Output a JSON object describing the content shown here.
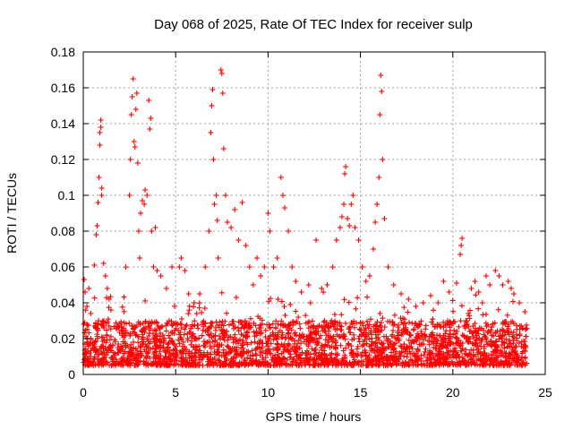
{
  "chart_data": {
    "type": "scatter",
    "title": "Day 068 of 2025, Rate Of TEC Index for receiver sulp",
    "xlabel": "GPS time / hours",
    "ylabel": "ROTI / TECUs",
    "xlim": [
      0,
      25
    ],
    "ylim": [
      0,
      0.18
    ],
    "grid": true,
    "marker": "plus",
    "color": "#ff0000",
    "x_ticks": [
      "0",
      "5",
      "10",
      "15",
      "20",
      "25"
    ],
    "y_ticks": [
      "0",
      "0.02",
      "0.04",
      "0.06",
      "0.08",
      "0.1",
      "0.12",
      "0.14",
      "0.16",
      "0.18"
    ],
    "x_tick_values": [
      0,
      5,
      10,
      15,
      20,
      25
    ],
    "y_tick_values": [
      0,
      0.02,
      0.04,
      0.06,
      0.08,
      0.1,
      0.12,
      0.14,
      0.16,
      0.18
    ],
    "data_extent_hours": [
      0,
      24
    ],
    "baseline_band": [
      0.005,
      0.03
    ],
    "series": [
      {
        "name": "ROTI",
        "points": [
          [
            0.05,
            0.053
          ],
          [
            0.1,
            0.046
          ],
          [
            0.2,
            0.038
          ],
          [
            0.3,
            0.048
          ],
          [
            0.6,
            0.061
          ],
          [
            0.7,
            0.078
          ],
          [
            0.75,
            0.083
          ],
          [
            0.8,
            0.096
          ],
          [
            0.85,
            0.11
          ],
          [
            0.9,
            0.128
          ],
          [
            0.9,
            0.135
          ],
          [
            0.95,
            0.138
          ],
          [
            0.95,
            0.142
          ],
          [
            1.0,
            0.1
          ],
          [
            1.0,
            0.104
          ],
          [
            1.1,
            0.062
          ],
          [
            1.2,
            0.055
          ],
          [
            1.3,
            0.048
          ],
          [
            1.4,
            0.042
          ],
          [
            1.5,
            0.036
          ],
          [
            2.3,
            0.06
          ],
          [
            2.5,
            0.1
          ],
          [
            2.55,
            0.12
          ],
          [
            2.6,
            0.145
          ],
          [
            2.65,
            0.155
          ],
          [
            2.7,
            0.165
          ],
          [
            2.75,
            0.13
          ],
          [
            2.8,
            0.127
          ],
          [
            2.85,
            0.148
          ],
          [
            2.9,
            0.157
          ],
          [
            2.95,
            0.118
          ],
          [
            3.0,
            0.08
          ],
          [
            3.05,
            0.065
          ],
          [
            3.1,
            0.09
          ],
          [
            3.2,
            0.097
          ],
          [
            3.3,
            0.095
          ],
          [
            3.35,
            0.103
          ],
          [
            3.45,
            0.1
          ],
          [
            3.55,
            0.153
          ],
          [
            3.6,
            0.137
          ],
          [
            3.65,
            0.143
          ],
          [
            3.7,
            0.08
          ],
          [
            3.8,
            0.06
          ],
          [
            3.9,
            0.082
          ],
          [
            4.0,
            0.058
          ],
          [
            4.2,
            0.055
          ],
          [
            4.5,
            0.048
          ],
          [
            4.8,
            0.06
          ],
          [
            5.2,
            0.06
          ],
          [
            5.3,
            0.065
          ],
          [
            5.5,
            0.058
          ],
          [
            5.7,
            0.045
          ],
          [
            6.0,
            0.04
          ],
          [
            6.3,
            0.045
          ],
          [
            6.6,
            0.06
          ],
          [
            6.8,
            0.08
          ],
          [
            6.9,
            0.135
          ],
          [
            6.95,
            0.15
          ],
          [
            7.0,
            0.159
          ],
          [
            7.05,
            0.12
          ],
          [
            7.1,
            0.095
          ],
          [
            7.2,
            0.1
          ],
          [
            7.25,
            0.086
          ],
          [
            7.3,
            0.065
          ],
          [
            7.45,
            0.17
          ],
          [
            7.5,
            0.168
          ],
          [
            7.55,
            0.157
          ],
          [
            7.6,
            0.126
          ],
          [
            7.7,
            0.1
          ],
          [
            7.8,
            0.085
          ],
          [
            8.0,
            0.082
          ],
          [
            8.2,
            0.092
          ],
          [
            8.4,
            0.075
          ],
          [
            8.6,
            0.096
          ],
          [
            8.8,
            0.072
          ],
          [
            9.0,
            0.06
          ],
          [
            9.2,
            0.05
          ],
          [
            9.4,
            0.065
          ],
          [
            9.6,
            0.055
          ],
          [
            9.8,
            0.06
          ],
          [
            10.0,
            0.09
          ],
          [
            10.1,
            0.08
          ],
          [
            10.3,
            0.06
          ],
          [
            10.5,
            0.065
          ],
          [
            10.7,
            0.11
          ],
          [
            10.8,
            0.1
          ],
          [
            10.9,
            0.093
          ],
          [
            11.1,
            0.08
          ],
          [
            11.3,
            0.06
          ],
          [
            11.5,
            0.052
          ],
          [
            11.8,
            0.046
          ],
          [
            12.2,
            0.05
          ],
          [
            12.6,
            0.075
          ],
          [
            12.9,
            0.048
          ],
          [
            13.2,
            0.05
          ],
          [
            13.5,
            0.06
          ],
          [
            13.7,
            0.075
          ],
          [
            13.9,
            0.082
          ],
          [
            14.0,
            0.088
          ],
          [
            14.1,
            0.095
          ],
          [
            14.15,
            0.112
          ],
          [
            14.2,
            0.116
          ],
          [
            14.3,
            0.087
          ],
          [
            14.4,
            0.083
          ],
          [
            14.5,
            0.095
          ],
          [
            14.6,
            0.1
          ],
          [
            14.7,
            0.082
          ],
          [
            14.9,
            0.075
          ],
          [
            15.1,
            0.06
          ],
          [
            15.3,
            0.052
          ],
          [
            15.5,
            0.055
          ],
          [
            15.7,
            0.07
          ],
          [
            15.8,
            0.085
          ],
          [
            15.9,
            0.095
          ],
          [
            16.0,
            0.11
          ],
          [
            16.05,
            0.145
          ],
          [
            16.1,
            0.167
          ],
          [
            16.15,
            0.158
          ],
          [
            16.2,
            0.12
          ],
          [
            16.3,
            0.087
          ],
          [
            16.5,
            0.06
          ],
          [
            16.8,
            0.05
          ],
          [
            17.2,
            0.045
          ],
          [
            17.6,
            0.042
          ],
          [
            18.0,
            0.038
          ],
          [
            18.4,
            0.04
          ],
          [
            18.8,
            0.044
          ],
          [
            19.2,
            0.04
          ],
          [
            19.5,
            0.052
          ],
          [
            19.8,
            0.046
          ],
          [
            20.2,
            0.051
          ],
          [
            20.4,
            0.067
          ],
          [
            20.45,
            0.072
          ],
          [
            20.5,
            0.076
          ],
          [
            20.7,
            0.03
          ],
          [
            21.0,
            0.048
          ],
          [
            21.2,
            0.052
          ],
          [
            21.4,
            0.046
          ],
          [
            21.6,
            0.04
          ],
          [
            21.8,
            0.055
          ],
          [
            22.0,
            0.05
          ],
          [
            22.3,
            0.058
          ],
          [
            22.5,
            0.055
          ],
          [
            22.7,
            0.05
          ],
          [
            23.0,
            0.052
          ],
          [
            23.3,
            0.045
          ],
          [
            23.6,
            0.04
          ],
          [
            23.9,
            0.035
          ]
        ]
      }
    ]
  }
}
